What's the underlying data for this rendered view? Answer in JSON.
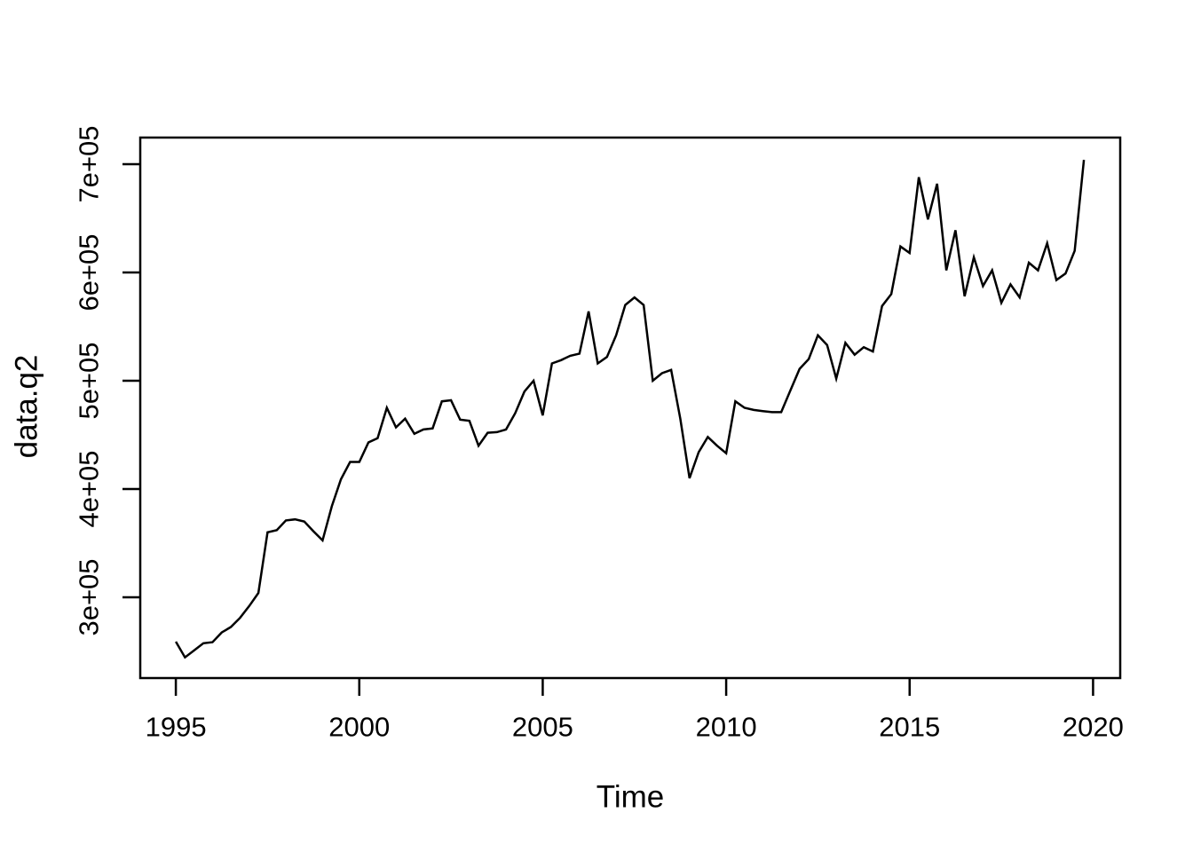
{
  "figure": {
    "background": "#ffffff",
    "line_color": "#000000",
    "axis_color": "#000000",
    "text_color": "#000000"
  },
  "chart_data": {
    "type": "line",
    "title": "",
    "xlabel": "Time",
    "ylabel": "data.q2",
    "grid": false,
    "legend": "none",
    "frame": "box",
    "xlim": [
      1994.03,
      2020.74
    ],
    "ylim": [
      225400,
      724600
    ],
    "x_ticks": {
      "values": [
        1995,
        2000,
        2005,
        2010,
        2015,
        2020
      ],
      "labels": [
        "1995",
        "2000",
        "2005",
        "2010",
        "2015",
        "2020"
      ]
    },
    "y_ticks": {
      "values": [
        300000,
        400000,
        500000,
        600000,
        700000
      ],
      "labels": [
        "3e+05",
        "4e+05",
        "5e+05",
        "6e+05",
        "7e+05"
      ]
    },
    "series": [
      {
        "name": "data.q2",
        "color": "#000000",
        "x_start": 1995.0,
        "x_step": 0.25,
        "values": [
          259000,
          244500,
          251000,
          257500,
          258500,
          267500,
          272500,
          281000,
          292000,
          304000,
          360000,
          362000,
          371000,
          372000,
          370000,
          361000,
          352500,
          384000,
          409000,
          425000,
          425000,
          443000,
          447000,
          475000,
          457000,
          465000,
          451000,
          455000,
          456000,
          481000,
          482000,
          464000,
          463000,
          440000,
          452000,
          452500,
          455000,
          470000,
          490000,
          500000,
          468000,
          516000,
          519000,
          523000,
          525000,
          564000,
          516000,
          522000,
          542000,
          570000,
          577000,
          570000,
          500000,
          507000,
          510000,
          465000,
          410000,
          434000,
          448000,
          440000,
          433000,
          481000,
          475000,
          473000,
          472000,
          471000,
          471000,
          491000,
          511000,
          520000,
          542000,
          533000,
          502000,
          535000,
          524000,
          531000,
          527000,
          569000,
          580000,
          624000,
          618000,
          688000,
          649000,
          682000,
          602000,
          639000,
          578000,
          614000,
          587500,
          602000,
          572000,
          589000,
          577000,
          609000,
          602000,
          627000,
          593000,
          599000,
          620000,
          704000
        ]
      }
    ]
  }
}
